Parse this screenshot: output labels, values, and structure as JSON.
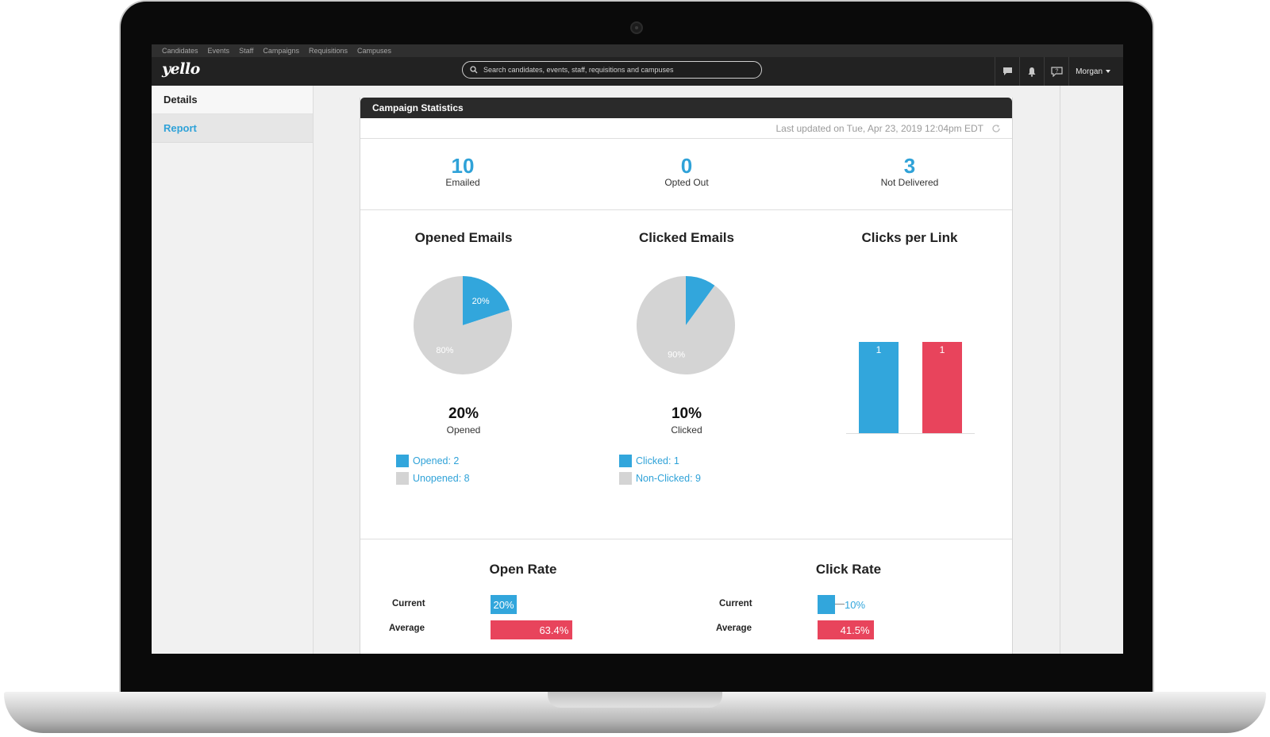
{
  "nav": {
    "items": [
      "Candidates",
      "Events",
      "Staff",
      "Campaigns",
      "Requisitions",
      "Campuses"
    ]
  },
  "header": {
    "logo": "yello",
    "search_placeholder": "Search candidates, events, staff, requisitions and campuses",
    "icons": [
      "chat-icon",
      "bell-icon",
      "help-icon"
    ],
    "user": "Morgan"
  },
  "sidebar": {
    "items": [
      {
        "label": "Details"
      },
      {
        "label": "Report"
      }
    ]
  },
  "card": {
    "title": "Campaign Statistics",
    "updated": "Last updated on Tue, Apr 23, 2019 12:04pm EDT"
  },
  "stats": [
    {
      "value": "10",
      "label": "Emailed"
    },
    {
      "value": "0",
      "label": "Opted Out"
    },
    {
      "value": "3",
      "label": "Not Delivered"
    }
  ],
  "opened": {
    "title": "Opened Emails",
    "percent": "20%",
    "percent_label": "Opened",
    "legend": [
      "Opened: 2",
      "Unopened: 8"
    ]
  },
  "clicked": {
    "title": "Clicked Emails",
    "percent": "10%",
    "percent_label": "Clicked",
    "legend": [
      "Clicked: 1",
      "Non-Clicked: 9"
    ]
  },
  "clicks_per_link": {
    "title": "Clicks per Link"
  },
  "open_rate": {
    "title": "Open Rate",
    "current_label": "Current",
    "average_label": "Average",
    "current": "20%",
    "average": "63.4%"
  },
  "click_rate": {
    "title": "Click Rate",
    "current_label": "Current",
    "average_label": "Average",
    "current": "10%",
    "average": "41.5%"
  },
  "colors": {
    "blue": "#32a6dc",
    "red": "#e8445c",
    "gray": "#d4d4d4"
  },
  "chart_data": [
    {
      "type": "pie",
      "title": "Opened Emails",
      "labels": [
        "Opened",
        "Unopened"
      ],
      "values": [
        20,
        80
      ],
      "slice_labels": [
        "20%",
        "80%"
      ]
    },
    {
      "type": "pie",
      "title": "Clicked Emails",
      "labels": [
        "Clicked",
        "Non-Clicked"
      ],
      "values": [
        10,
        90
      ],
      "slice_labels": [
        "",
        "90%"
      ]
    },
    {
      "type": "bar",
      "title": "Clicks per Link",
      "categories": [
        "",
        ""
      ],
      "values": [
        1,
        1
      ],
      "data_labels": [
        "1",
        "1"
      ],
      "ylim": [
        0,
        1
      ]
    },
    {
      "type": "bar",
      "title": "Open Rate",
      "categories": [
        "Current",
        "Average"
      ],
      "values": [
        20,
        63.4
      ],
      "data_labels": [
        "20%",
        "63.4%"
      ]
    },
    {
      "type": "bar",
      "title": "Click Rate",
      "categories": [
        "Current",
        "Average"
      ],
      "values": [
        10,
        41.5
      ],
      "data_labels": [
        "10%",
        "41.5%"
      ]
    }
  ]
}
